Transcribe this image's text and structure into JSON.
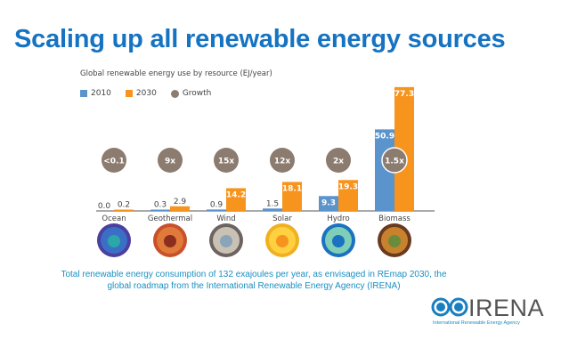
{
  "page": {
    "title": "Scaling up all renewable energy sources",
    "caption": "Total renewable energy consumption of 132 exajoules per year, as envisaged in REmap 2030, the global roadmap from the International Renewable Energy Agency (IRENA)",
    "logo": {
      "name": "IRENA",
      "subtitle": "International Renewable Energy Agency"
    }
  },
  "colors": {
    "title": "#1673c1",
    "s2010": "#5b93cc",
    "s2030": "#f7941d",
    "growth": "#8c7b6f",
    "caption": "#1a8fc0"
  },
  "chart_data": {
    "type": "bar",
    "title": "Global renewable energy use by resource (EJ/year)",
    "xlabel": "",
    "ylabel": "EJ/year",
    "ylim": [
      0,
      80
    ],
    "grid": false,
    "legend": "top-left",
    "legend_entries": [
      "2010",
      "2030",
      "Growth"
    ],
    "categories": [
      "Ocean",
      "Geothermal",
      "Wind",
      "Solar",
      "Hydro",
      "Biomass"
    ],
    "series": [
      {
        "name": "2010",
        "values": [
          0.0,
          0.3,
          0.9,
          1.5,
          9.3,
          50.9
        ],
        "labels": [
          "0.0",
          "0.3",
          "0.9",
          "1.5",
          "9.3",
          "50.9"
        ]
      },
      {
        "name": "2030",
        "values": [
          0.2,
          2.9,
          14.2,
          18.1,
          19.3,
          77.3
        ],
        "labels": [
          "0.2",
          "2.9",
          "14.2",
          "18.1",
          "19.3",
          "77.3"
        ]
      }
    ],
    "growth": [
      "<0.1",
      "9x",
      "15x",
      "12x",
      "2x",
      "1.5x"
    ],
    "icons": [
      "ocean-wave-icon",
      "volcano-icon",
      "wind-icon",
      "sun-icon",
      "water-drop-icon",
      "leaf-icon"
    ]
  }
}
